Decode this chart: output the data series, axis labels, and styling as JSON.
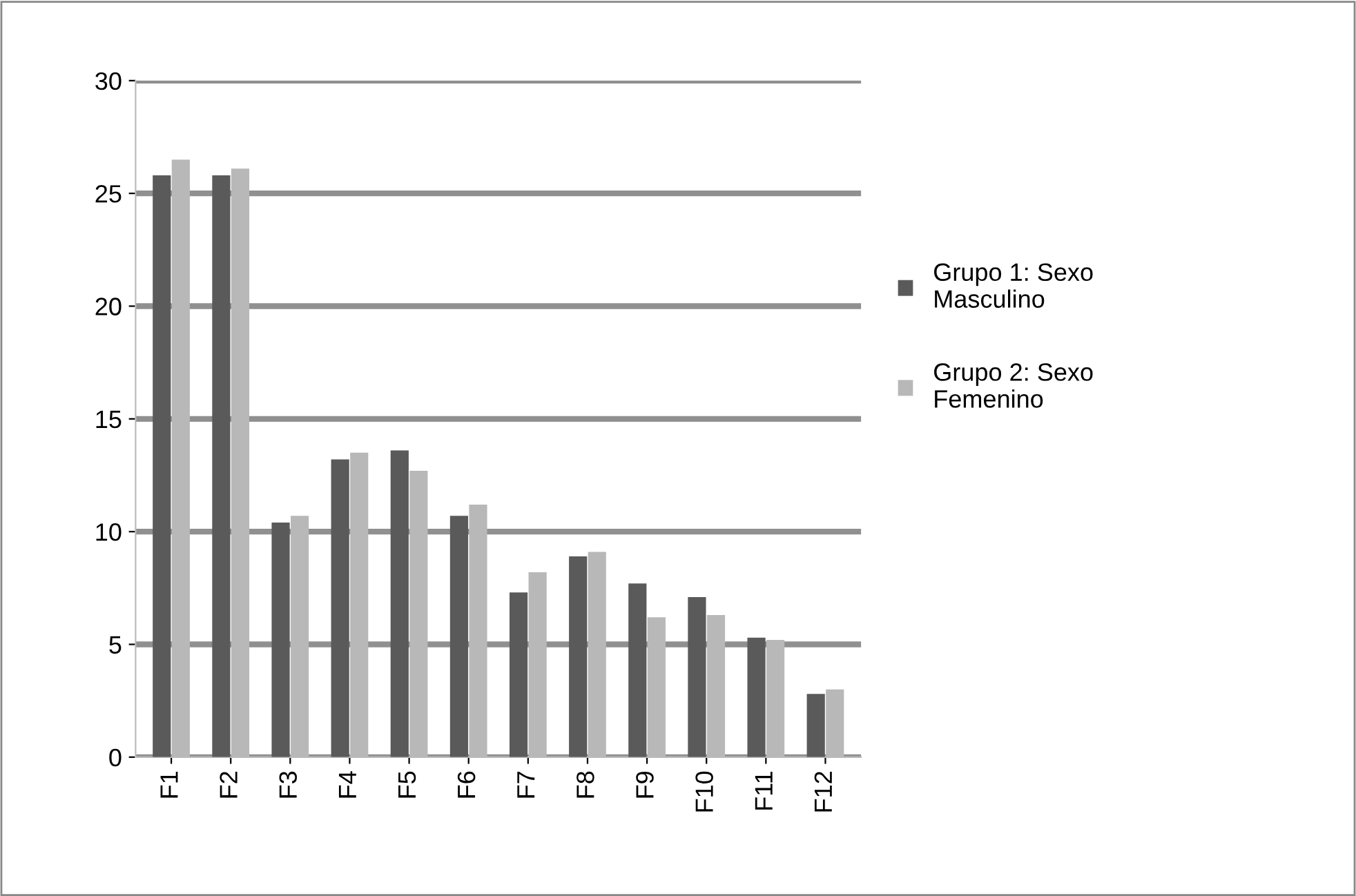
{
  "chart_data": {
    "type": "bar",
    "categories": [
      "F1",
      "F2",
      "F3",
      "F4",
      "F5",
      "F6",
      "F7",
      "F8",
      "F9",
      "F10",
      "F11",
      "F12"
    ],
    "series": [
      {
        "name": "Grupo 1: Sexo\nMasculino",
        "color": "#5a5a5a",
        "values": [
          25.8,
          25.8,
          10.4,
          13.2,
          13.6,
          10.7,
          7.3,
          8.9,
          7.7,
          7.1,
          5.3,
          2.8
        ]
      },
      {
        "name": "Grupo 2: Sexo\nFemenino",
        "color": "#b8b8b8",
        "values": [
          26.5,
          26.1,
          10.7,
          13.5,
          12.7,
          11.2,
          8.2,
          9.1,
          6.2,
          6.3,
          5.2,
          3.0
        ]
      }
    ],
    "ylim": [
      0,
      30
    ],
    "yticks": [
      0,
      5,
      10,
      15,
      20,
      25,
      30
    ],
    "grid": "y",
    "legend": "right"
  }
}
